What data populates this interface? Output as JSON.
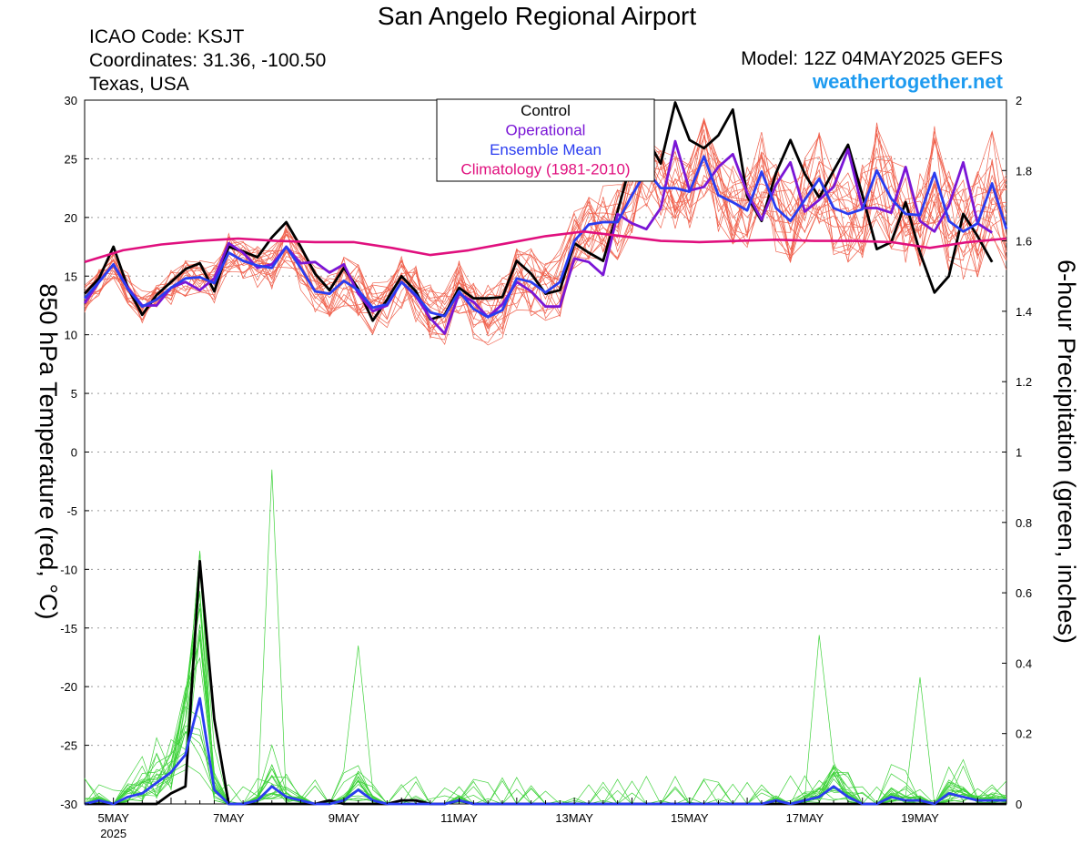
{
  "header": {
    "title": "San Angelo Regional Airport",
    "icao": "ICAO Code: KSJT",
    "coords": "Coordinates: 31.36, -100.50",
    "region": "Texas, USA",
    "model": "Model: 12Z 04MAY2025 GEFS",
    "site": "weathertogether.net"
  },
  "chart_data": {
    "type": "line",
    "title": "San Angelo Regional Airport",
    "ylabel": "850 hPa Temperature (red, °C)",
    "y2label": "6-hour Precipitation (green, inches)",
    "ylim": [
      -30,
      30
    ],
    "y2lim": [
      0,
      2
    ],
    "yticks": [
      "30",
      "25",
      "20",
      "15",
      "10",
      "5",
      "0",
      "-5",
      "-10",
      "-15",
      "-20",
      "-25",
      "-30"
    ],
    "y2ticks": [
      "2",
      "1.8",
      "1.6",
      "1.4",
      "1.2",
      "1",
      "0.8",
      "0.6",
      "0.4",
      "0.2",
      "0"
    ],
    "xticks": [
      "5MAY",
      "7MAY",
      "9MAY",
      "11MAY",
      "13MAY",
      "15MAY",
      "17MAY",
      "19MAY"
    ],
    "xyear": "2025",
    "x_start": "2025-05-04 12Z",
    "x_step": "6 hours",
    "grid": true,
    "legend": [
      "Control",
      "Operational",
      "Ensemble Mean",
      "Climatology (1981-2010)"
    ],
    "legend_position": "top-center",
    "colors": {
      "control": "#000000",
      "operational": "#7a16d6",
      "mean": "#2a3cf0",
      "climatology": "#e0107e",
      "members_temp": "#f0624e",
      "members_precip": "#3ed23a"
    },
    "series": [
      {
        "name": "Control",
        "axis": "temperature",
        "values": [
          13.5,
          14.8,
          17.5,
          14.0,
          11.7,
          13.4,
          14.5,
          15.6,
          16.1,
          13.7,
          17.5,
          17.1,
          16.6,
          18.3,
          19.6,
          17.5,
          15.2,
          13.8,
          15.7,
          13.9,
          11.2,
          13.0,
          15.0,
          13.7,
          11.3,
          11.7,
          14.0,
          13.1,
          13.1,
          13.2,
          16.3,
          15.2,
          13.5,
          13.8,
          17.8,
          17.0,
          16.3,
          20.5,
          25.0,
          26.8,
          24.6,
          29.8,
          26.6,
          25.9,
          27.0,
          29.2,
          21.8,
          19.7,
          23.8,
          26.6,
          23.7,
          21.7,
          24.0,
          26.2,
          21.9,
          17.3,
          17.9,
          21.3,
          17.0,
          13.6,
          15.0,
          20.3,
          18.4,
          16.2
        ]
      },
      {
        "name": "Operational",
        "axis": "temperature",
        "values": [
          12.7,
          14.5,
          16.0,
          14.0,
          12.5,
          12.5,
          14.0,
          14.5,
          13.8,
          14.8,
          17.8,
          17.0,
          15.7,
          16.0,
          17.5,
          16.1,
          16.2,
          15.3,
          16.0,
          13.5,
          12.0,
          12.5,
          14.5,
          13.3,
          11.4,
          10.1,
          13.5,
          12.8,
          11.5,
          12.6,
          14.5,
          13.7,
          12.4,
          12.4,
          16.5,
          16.2,
          15.1,
          20.3,
          19.5,
          19.0,
          20.8,
          26.5,
          22.3,
          22.6,
          24.3,
          25.4,
          22.1,
          19.8,
          22.8,
          24.7,
          20.5,
          21.5,
          22.6,
          25.8,
          20.8,
          20.8,
          20.4,
          24.3,
          19.7,
          18.8,
          21.0,
          24.7,
          19.5,
          18.7
        ]
      },
      {
        "name": "Ensemble Mean",
        "axis": "temperature",
        "values": [
          13.1,
          14.5,
          16.0,
          13.9,
          12.4,
          13.0,
          14.0,
          14.8,
          14.9,
          14.4,
          17.0,
          16.3,
          15.9,
          15.7,
          17.5,
          15.7,
          13.7,
          13.5,
          14.6,
          13.8,
          12.3,
          12.6,
          14.5,
          13.4,
          11.9,
          11.6,
          13.7,
          12.2,
          11.5,
          12.1,
          14.8,
          14.5,
          13.6,
          14.5,
          18.0,
          19.4,
          19.6,
          19.6,
          21.9,
          24.0,
          22.5,
          22.5,
          22.2,
          25.2,
          21.9,
          21.3,
          20.6,
          23.9,
          20.8,
          19.7,
          21.5,
          23.3,
          20.8,
          20.3,
          20.7,
          24.0,
          21.6,
          20.3,
          20.2,
          23.8,
          19.7,
          18.8,
          19.5,
          22.9,
          19.0
        ]
      },
      {
        "name": "Climatology (1981-2010)",
        "axis": "temperature",
        "values": [
          16.2,
          17.2,
          17.7,
          18.0,
          18.2,
          18.0,
          17.9,
          17.9,
          17.4,
          16.8,
          17.2,
          17.8,
          18.4,
          18.8,
          18.4,
          18.0,
          17.9,
          18.0,
          18.1,
          18.0,
          18.0,
          17.9,
          17.4,
          17.9,
          18.2
        ]
      },
      {
        "name": "Control",
        "axis": "precipitation",
        "values": [
          0,
          0,
          0,
          0,
          0,
          0,
          0.03,
          0.05,
          0.69,
          0.24,
          0,
          0,
          0,
          0,
          0,
          0,
          0,
          0.01,
          0,
          0,
          0,
          0,
          0.01,
          0.01,
          0,
          0,
          0.01,
          0,
          0,
          0,
          0,
          0,
          0,
          0,
          0,
          0,
          0,
          0,
          0,
          0,
          0,
          0,
          0,
          0,
          0,
          0,
          0,
          0,
          0,
          0,
          0,
          0,
          0,
          0,
          0,
          0,
          0,
          0,
          0,
          0,
          0,
          0,
          0,
          0,
          0
        ]
      },
      {
        "name": "Ensemble Mean",
        "axis": "precipitation",
        "values": [
          0,
          0.01,
          0,
          0.02,
          0.03,
          0.06,
          0.09,
          0.14,
          0.3,
          0.04,
          0,
          0,
          0.01,
          0.05,
          0.02,
          0.01,
          0,
          0,
          0.01,
          0.04,
          0.01,
          0,
          0,
          0,
          0,
          0,
          0.01,
          0,
          0,
          0,
          0,
          0,
          0,
          0,
          0,
          0,
          0,
          0,
          0,
          0,
          0,
          0,
          0,
          0,
          0,
          0,
          0,
          0,
          0.01,
          0,
          0.01,
          0.02,
          0.05,
          0.02,
          0,
          0,
          0.02,
          0.01,
          0.01,
          0,
          0.03,
          0.02,
          0.01,
          0.01,
          0.01
        ]
      }
    ]
  }
}
